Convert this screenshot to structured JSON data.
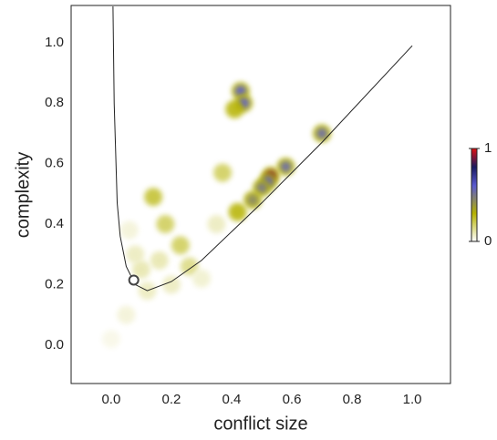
{
  "chart_data": {
    "type": "density-scatter",
    "xlabel": "conflict size",
    "ylabel": "complexity",
    "xlim": [
      -0.133,
      1.127
    ],
    "ylim": [
      -0.127,
      1.123
    ],
    "xticks": [
      {
        "value": 0,
        "label": "0.0"
      },
      {
        "value": 0.2,
        "label": "0.2"
      },
      {
        "value": 0.4,
        "label": "0.4"
      },
      {
        "value": 0.6,
        "label": "0.6"
      },
      {
        "value": 0.8,
        "label": "0.8"
      },
      {
        "value": 1,
        "label": "1.0"
      }
    ],
    "yticks": [
      {
        "value": 0,
        "label": "0.0"
      },
      {
        "value": 0.2,
        "label": "0.2"
      },
      {
        "value": 0.4,
        "label": "0.4"
      },
      {
        "value": 0.6,
        "label": "0.6"
      },
      {
        "value": 0.8,
        "label": "0.8"
      },
      {
        "value": 1,
        "label": "1.0"
      }
    ],
    "points": {
      "x": [
        0.43,
        0.44,
        0.41,
        0.7,
        0.58,
        0.53,
        0.52,
        0.5,
        0.47,
        0.42,
        0.37,
        0.14,
        0.18,
        0.23,
        0.26,
        0.16,
        0.1,
        0.06,
        0.08,
        0.12,
        0.05,
        0.0,
        0.2,
        0.3,
        0.35
      ],
      "y": [
        0.84,
        0.8,
        0.78,
        0.7,
        0.59,
        0.56,
        0.54,
        0.52,
        0.48,
        0.44,
        0.57,
        0.49,
        0.4,
        0.33,
        0.26,
        0.28,
        0.25,
        0.38,
        0.3,
        0.18,
        0.1,
        0.02,
        0.2,
        0.22,
        0.4
      ],
      "values": [
        0.6,
        0.6,
        0.3,
        0.55,
        0.55,
        0.9,
        0.6,
        0.5,
        0.45,
        0.3,
        0.2,
        0.25,
        0.2,
        0.2,
        0.15,
        0.1,
        0.1,
        0.05,
        0.08,
        0.08,
        0.05,
        0.03,
        0.08,
        0.06,
        0.08
      ]
    },
    "curve": {
      "color": "#222222",
      "x": [
        0.006,
        0.01,
        0.02,
        0.03,
        0.05,
        0.08,
        0.12,
        0.2,
        0.3,
        0.5,
        0.7,
        1.0
      ],
      "y": [
        1.12,
        0.8,
        0.47,
        0.36,
        0.26,
        0.2,
        0.18,
        0.21,
        0.28,
        0.47,
        0.67,
        0.99
      ]
    },
    "marker": {
      "x": 0.075,
      "y": 0.215,
      "color": "#444444"
    },
    "clim": [
      0,
      1
    ],
    "cticks": [
      0,
      1
    ]
  }
}
